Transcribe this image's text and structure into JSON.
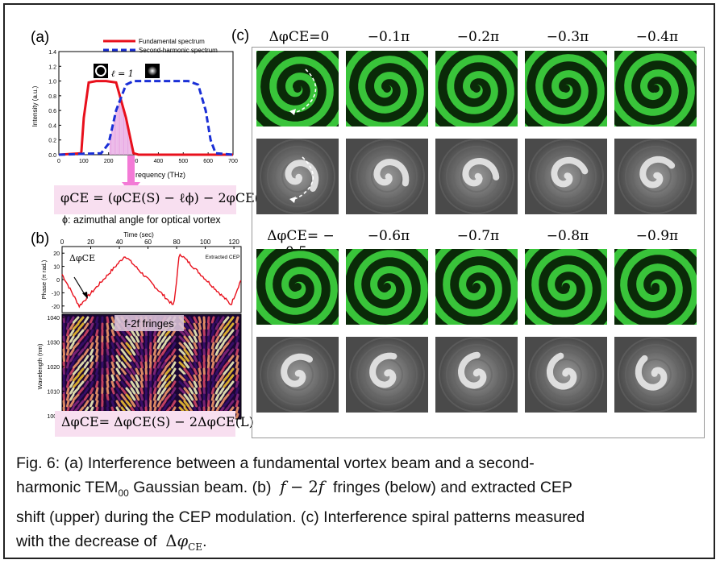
{
  "panel_a": {
    "label": "(a)",
    "legend": [
      "Fundamental spectrum",
      "Second-harmonic spectrum"
    ],
    "ylabel": "Intensity (a.u.)",
    "xlabel": "Frequency (THz)",
    "xlabel_visible": "requency (THz)",
    "yticks": [
      "0.0",
      "0.2",
      "0.4",
      "0.6",
      "0.8",
      "1.0",
      "1.2",
      "1.4"
    ],
    "xticks": [
      "0",
      "100",
      "200",
      "300",
      "400",
      "500",
      "600",
      "700"
    ],
    "ell_label": "ℓ = 1",
    "equation": "φCE = (φCE(S) − ℓϕ) − 2φCE(L)",
    "note": "ϕ: azimuthal angle for optical vortex",
    "colors": {
      "fundamental": "#e8101c",
      "second_harmonic": "#1a2fd6",
      "pink": "#f8dff0",
      "arrow": "#f37ad6"
    }
  },
  "panel_b": {
    "label": "(b)",
    "top_xlabel": "Time (sec)",
    "top_xticks": [
      "0",
      "20",
      "40",
      "60",
      "80",
      "100",
      "120"
    ],
    "phase_ylabel": "Phase (π rad.)",
    "phase_yticks": [
      "20",
      "10",
      "0",
      "-10",
      "-20"
    ],
    "legend": "Extracted CEP",
    "delta_label": "ΔφCE",
    "fringe_label": "f-2f fringes",
    "wl_ylabel": "Wavelength (nm)",
    "wl_yticks": [
      "1040",
      "1030",
      "1020",
      "1010",
      "1000"
    ],
    "equation": "ΔφCE= ΔφCE(S) − 2ΔφCE(L)"
  },
  "panel_c": {
    "label": "(c)",
    "row1_headers": [
      "ΔφCE=0",
      "−0.1π",
      "−0.2π",
      "−0.3π",
      "−0.4π"
    ],
    "row2_headers": [
      "ΔφCE= − 0.5π",
      "−0.6π",
      "−0.7π",
      "−0.8π",
      "−0.9π"
    ]
  },
  "chart_data": [
    {
      "type": "line",
      "title": "",
      "xlabel": "Frequency (THz)",
      "ylabel": "Intensity (a.u.)",
      "xlim": [
        0,
        700
      ],
      "ylim": [
        0,
        1.4
      ],
      "series": [
        {
          "name": "Fundamental spectrum",
          "x": [
            0,
            90,
            100,
            120,
            150,
            190,
            230,
            270,
            300,
            320,
            700
          ],
          "y": [
            0,
            0.02,
            0.5,
            0.98,
            1.0,
            1.0,
            0.98,
            0.5,
            0.02,
            0,
            0
          ]
        },
        {
          "name": "Second-harmonic spectrum",
          "x": [
            0,
            170,
            200,
            230,
            270,
            300,
            520,
            560,
            590,
            610,
            630,
            700
          ],
          "y": [
            0,
            0.02,
            0.15,
            0.6,
            0.95,
            1.0,
            1.0,
            0.95,
            0.6,
            0.2,
            0.02,
            0
          ]
        }
      ]
    },
    {
      "type": "line",
      "xlabel": "Time (sec)",
      "ylabel": "Phase (π rad.)",
      "xlim": [
        0,
        125
      ],
      "ylim": [
        -25,
        25
      ],
      "series": [
        {
          "name": "Extracted CEP",
          "x": [
            0,
            12,
            44,
            78,
            82,
            118,
            125
          ],
          "y": [
            4,
            -20,
            18,
            -20,
            20,
            -19,
            0
          ]
        }
      ]
    }
  ]
}
